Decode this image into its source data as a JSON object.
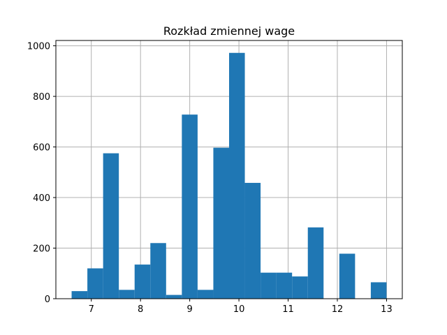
{
  "chart_data": {
    "type": "bar",
    "title": "Rozkład zmiennej wage",
    "xlabel": "",
    "ylabel": "",
    "bin_edges": [
      6.6,
      6.92,
      7.24,
      7.56,
      7.88,
      8.2,
      8.52,
      8.84,
      9.16,
      9.48,
      9.8,
      10.12,
      10.44,
      10.76,
      11.08,
      11.4,
      11.72,
      12.04,
      12.36,
      12.68,
      13.0
    ],
    "values": [
      30,
      120,
      575,
      35,
      135,
      220,
      15,
      728,
      35,
      597,
      972,
      458,
      103,
      103,
      88,
      282,
      0,
      178,
      0,
      65
    ],
    "xlim": [
      6.28,
      13.32
    ],
    "ylim": [
      0,
      1021
    ],
    "xticks": [
      7,
      8,
      9,
      10,
      11,
      12,
      13
    ],
    "yticks": [
      0,
      200,
      400,
      600,
      800,
      1000
    ],
    "grid": true,
    "bar_color": "#1f77b4"
  }
}
